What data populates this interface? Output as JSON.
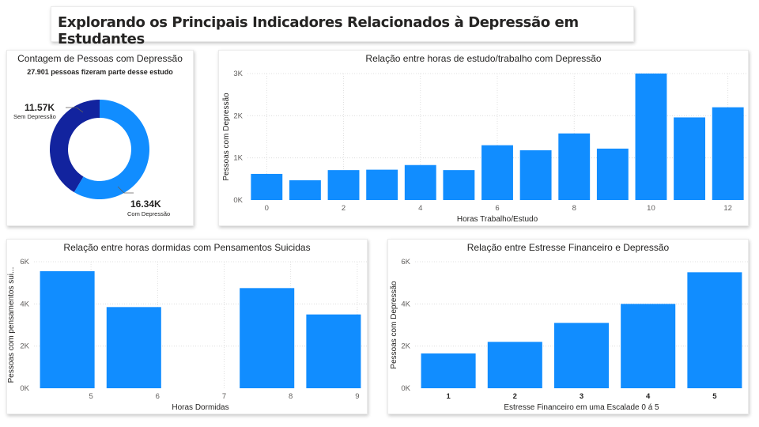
{
  "report": {
    "title": "Explorando os Principais Indicadores Relacionados à Depressão em Estudantes"
  },
  "colors": {
    "bar": "#118dff",
    "donut_sem": "#12239e",
    "donut_com": "#118dff",
    "grid": "#d9d9d9"
  },
  "donut": {
    "title": "Contagem de Pessoas com Depressão",
    "subtitle": "27.901 pessoas fizeram parte desse estudo",
    "sem": {
      "value_label": "11.57K",
      "category": "Sem Depressão"
    },
    "com": {
      "value_label": "16.34K",
      "category": "Com Depressão"
    }
  },
  "chart_data": [
    {
      "id": "donut",
      "type": "pie",
      "title": "Contagem de Pessoas com Depressão",
      "subtitle": "27.901 pessoas fizeram parte desse estudo",
      "categories": [
        "Sem Depressão",
        "Com Depressão"
      ],
      "values": [
        11570,
        16340
      ],
      "labels": [
        "11.57K",
        "16.34K"
      ]
    },
    {
      "id": "study",
      "type": "bar",
      "title": "Relação entre horas de estudo/trabalho com Depressão",
      "xlabel": "Horas Trabalho/Estudo",
      "ylabel": "Pessoas com Depressão",
      "x": [
        0,
        1,
        2,
        3,
        4,
        5,
        6,
        7,
        8,
        9,
        10,
        11,
        12
      ],
      "values": [
        620,
        470,
        710,
        720,
        830,
        710,
        1300,
        1180,
        1580,
        1220,
        3000,
        1960,
        2200
      ],
      "xticks": [
        "0",
        "2",
        "4",
        "6",
        "8",
        "10",
        "12"
      ],
      "yticks": [
        "0K",
        "1K",
        "2K",
        "3K"
      ],
      "ylim": [
        0,
        3000
      ],
      "grid": true
    },
    {
      "id": "sleep",
      "type": "bar",
      "title": "Relação entre horas dormidas com Pensamentos Suicidas",
      "xlabel": "Horas Dormidas",
      "ylabel": "Pessoas com pensamentos sui...",
      "x": [
        5,
        6,
        7,
        8,
        9
      ],
      "values": [
        5550,
        3850,
        0,
        4750,
        3500
      ],
      "xticks": [
        "5",
        "6",
        "7",
        "8",
        "9"
      ],
      "yticks": [
        "0K",
        "2K",
        "4K",
        "6K"
      ],
      "ylim": [
        0,
        6000
      ],
      "grid": true
    },
    {
      "id": "fin",
      "type": "bar",
      "title": "Relação entre Estresse Financeiro e Depressão",
      "xlabel": "Estresse Financeiro em uma Escalade 0 á 5",
      "ylabel": "Pessoas com Depressão",
      "categories": [
        "1",
        "2",
        "3",
        "4",
        "5"
      ],
      "values": [
        1650,
        2200,
        3100,
        4000,
        5500
      ],
      "yticks": [
        "0K",
        "2K",
        "4K",
        "6K"
      ],
      "ylim": [
        0,
        6000
      ],
      "grid": true
    }
  ]
}
